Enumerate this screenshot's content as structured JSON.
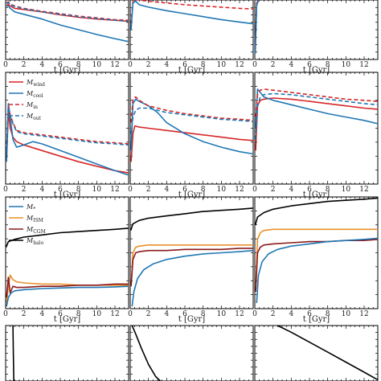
{
  "colors": {
    "red": "#d62728",
    "blue": "#1f77b4",
    "orange": "#e8912c",
    "darkred": "#8b1a1a",
    "black": "#000000"
  },
  "xlabel": "t [Gyr]",
  "xticks": [
    0,
    2,
    4,
    6,
    8,
    10,
    12
  ],
  "legend_row2": [
    {
      "label": "M_wind",
      "color": "red",
      "dash": false
    },
    {
      "label": "M_cool",
      "color": "blue",
      "dash": false
    },
    {
      "label": "M_in",
      "color": "red",
      "dash": true
    },
    {
      "label": "M_out",
      "color": "blue",
      "dash": true
    }
  ],
  "legend_row3": [
    {
      "label": "M_*",
      "color": "blue",
      "dash": false
    },
    {
      "label": "M_ISM",
      "color": "orange",
      "dash": false
    },
    {
      "label": "M_CGM",
      "color": "darkred",
      "dash": false
    },
    {
      "label": "M_halo",
      "color": "black",
      "dash": false
    }
  ],
  "chart_data": [
    {
      "type": "line",
      "panel": "r1c1",
      "xlim": [
        0,
        13.5
      ],
      "ylim": [
        0,
        1
      ],
      "series": [
        {
          "color": "red",
          "dash": false,
          "x": [
            0.1,
            0.3,
            0.5,
            1,
            2,
            4,
            6,
            8,
            10,
            12,
            13.5
          ],
          "y": [
            0.9,
            0.93,
            0.9,
            0.86,
            0.84,
            0.8,
            0.75,
            0.71,
            0.68,
            0.66,
            0.64
          ]
        },
        {
          "color": "blue",
          "dash": false,
          "x": [
            0.1,
            0.3,
            0.5,
            1,
            2,
            4,
            6,
            8,
            10,
            12,
            13.5
          ],
          "y": [
            0.9,
            0.9,
            0.86,
            0.8,
            0.76,
            0.68,
            0.58,
            0.5,
            0.42,
            0.35,
            0.3
          ]
        },
        {
          "color": "red",
          "dash": true,
          "x": [
            0.1,
            0.3,
            0.5,
            1,
            2,
            4,
            6,
            8,
            10,
            12,
            13.5
          ],
          "y": [
            0.95,
            0.97,
            0.93,
            0.9,
            0.86,
            0.81,
            0.77,
            0.73,
            0.7,
            0.67,
            0.66
          ]
        },
        {
          "color": "blue",
          "dash": true,
          "x": [
            0.1,
            0.3,
            0.5,
            1,
            2,
            4,
            6,
            8,
            10,
            12,
            13.5
          ],
          "y": [
            0.94,
            0.96,
            0.92,
            0.89,
            0.85,
            0.8,
            0.76,
            0.72,
            0.69,
            0.66,
            0.64
          ]
        }
      ]
    },
    {
      "type": "line",
      "panel": "r1c2",
      "xlim": [
        0,
        13.5
      ],
      "ylim": [
        0,
        1
      ],
      "series": [
        {
          "color": "red",
          "dash": true,
          "x": [
            0.1,
            0.3,
            0.6,
            1,
            2,
            4,
            6,
            8,
            10,
            12,
            13.5
          ],
          "y": [
            0.6,
            0.98,
            1.02,
            1.0,
            0.98,
            0.95,
            0.92,
            0.9,
            0.88,
            0.86,
            0.85
          ]
        },
        {
          "color": "blue",
          "dash": false,
          "x": [
            0.1,
            0.3,
            0.6,
            1,
            2,
            4,
            6,
            8,
            10,
            12,
            13.5
          ],
          "y": [
            0.5,
            0.95,
            0.98,
            0.92,
            0.88,
            0.82,
            0.77,
            0.72,
            0.67,
            0.63,
            0.6
          ]
        }
      ]
    },
    {
      "type": "line",
      "panel": "r1c3",
      "xlim": [
        0,
        13.5
      ],
      "ylim": [
        0,
        1
      ],
      "series": [
        {
          "color": "red",
          "dash": false,
          "x": [
            0.05,
            0.2,
            0.4
          ],
          "y": [
            0.2,
            0.95,
            1.02
          ]
        },
        {
          "color": "blue",
          "dash": false,
          "x": [
            0.05,
            0.2,
            0.4
          ],
          "y": [
            0.1,
            0.9,
            1.0
          ]
        }
      ]
    },
    {
      "type": "line",
      "panel": "r2c1",
      "xlim": [
        0,
        13.5
      ],
      "ylim": [
        0,
        1
      ],
      "series": [
        {
          "color": "red",
          "dash": false,
          "x": [
            0.1,
            0.3,
            0.5,
            0.8,
            1.2,
            2,
            4,
            6,
            8,
            10,
            12,
            13.5
          ],
          "y": [
            0.2,
            0.65,
            0.5,
            0.42,
            0.38,
            0.35,
            0.3,
            0.25,
            0.2,
            0.16,
            0.12,
            0.1
          ]
        },
        {
          "color": "blue",
          "dash": false,
          "x": [
            0.1,
            0.3,
            0.5,
            0.8,
            1.2,
            2,
            3,
            4,
            6,
            8,
            10,
            12,
            13.5
          ],
          "y": [
            0.2,
            0.72,
            0.6,
            0.4,
            0.33,
            0.35,
            0.38,
            0.36,
            0.3,
            0.24,
            0.18,
            0.12,
            0.08
          ]
        },
        {
          "color": "red",
          "dash": true,
          "x": [
            0.1,
            0.3,
            0.5,
            0.8,
            1.2,
            2,
            4,
            6,
            8,
            10,
            12,
            13.5
          ],
          "y": [
            0.3,
            0.7,
            0.62,
            0.55,
            0.48,
            0.46,
            0.44,
            0.42,
            0.4,
            0.38,
            0.37,
            0.36
          ]
        },
        {
          "color": "blue",
          "dash": true,
          "x": [
            0.1,
            0.3,
            0.5,
            0.8,
            1.2,
            2,
            4,
            6,
            8,
            10,
            12,
            13.5
          ],
          "y": [
            0.3,
            0.69,
            0.61,
            0.54,
            0.47,
            0.45,
            0.43,
            0.41,
            0.39,
            0.37,
            0.36,
            0.35
          ]
        }
      ]
    },
    {
      "type": "line",
      "panel": "r2c2",
      "xlim": [
        0,
        13.5
      ],
      "ylim": [
        0,
        1
      ],
      "series": [
        {
          "color": "red",
          "dash": false,
          "x": [
            0.1,
            0.3,
            0.5,
            1,
            2,
            4,
            6,
            8,
            10,
            12,
            13.5
          ],
          "y": [
            0.2,
            0.45,
            0.52,
            0.51,
            0.5,
            0.48,
            0.46,
            0.44,
            0.42,
            0.4,
            0.39
          ]
        },
        {
          "color": "blue",
          "dash": false,
          "x": [
            0.1,
            0.3,
            0.6,
            1,
            2,
            3,
            4,
            6,
            8,
            10,
            12,
            13.5
          ],
          "y": [
            0.3,
            0.72,
            0.76,
            0.74,
            0.7,
            0.64,
            0.55,
            0.45,
            0.38,
            0.33,
            0.29,
            0.27
          ]
        },
        {
          "color": "red",
          "dash": true,
          "x": [
            0.1,
            0.3,
            0.6,
            1,
            2,
            4,
            6,
            8,
            10,
            12,
            13.5
          ],
          "y": [
            0.55,
            0.76,
            0.78,
            0.75,
            0.7,
            0.66,
            0.63,
            0.61,
            0.59,
            0.58,
            0.57
          ]
        },
        {
          "color": "blue",
          "dash": true,
          "x": [
            0.1,
            0.3,
            0.6,
            1,
            2,
            4,
            6,
            8,
            10,
            12,
            13.5
          ],
          "y": [
            0.45,
            0.6,
            0.66,
            0.68,
            0.68,
            0.64,
            0.62,
            0.6,
            0.58,
            0.57,
            0.56
          ]
        }
      ]
    },
    {
      "type": "line",
      "panel": "r2c3",
      "xlim": [
        0,
        13.5
      ],
      "ylim": [
        0,
        1
      ],
      "series": [
        {
          "color": "red",
          "dash": false,
          "x": [
            0.1,
            0.3,
            0.6,
            1,
            2,
            4,
            6,
            8,
            10,
            12,
            13.5
          ],
          "y": [
            0.3,
            0.7,
            0.75,
            0.76,
            0.77,
            0.76,
            0.74,
            0.72,
            0.7,
            0.68,
            0.67
          ]
        },
        {
          "color": "blue",
          "dash": false,
          "x": [
            0.1,
            0.3,
            0.6,
            1,
            2,
            4,
            6,
            8,
            10,
            12,
            13.5
          ],
          "y": [
            0.5,
            0.85,
            0.82,
            0.78,
            0.75,
            0.71,
            0.67,
            0.63,
            0.6,
            0.57,
            0.54
          ]
        },
        {
          "color": "red",
          "dash": true,
          "x": [
            0.1,
            0.3,
            0.6,
            1,
            2,
            4,
            6,
            8,
            10,
            12,
            13.5
          ],
          "y": [
            0.6,
            0.8,
            0.84,
            0.85,
            0.84,
            0.82,
            0.8,
            0.78,
            0.76,
            0.75,
            0.74
          ]
        },
        {
          "color": "blue",
          "dash": true,
          "x": [
            0.1,
            0.3,
            0.6,
            1,
            2,
            4,
            6,
            8,
            10,
            12,
            13.5
          ],
          "y": [
            0.4,
            0.7,
            0.78,
            0.8,
            0.81,
            0.8,
            0.78,
            0.76,
            0.74,
            0.72,
            0.71
          ]
        }
      ]
    },
    {
      "type": "line",
      "panel": "r3c1",
      "xlim": [
        0,
        13.5
      ],
      "ylim": [
        0,
        1
      ],
      "series": [
        {
          "color": "black",
          "dash": false,
          "x": [
            0.05,
            0.3,
            1,
            2,
            4,
            6,
            8,
            10,
            12,
            13.5
          ],
          "y": [
            0.55,
            0.6,
            0.62,
            0.64,
            0.66,
            0.68,
            0.69,
            0.7,
            0.71,
            0.72
          ]
        },
        {
          "color": "orange",
          "dash": false,
          "x": [
            0.1,
            0.3,
            0.5,
            0.8,
            1.2,
            2,
            4,
            6,
            8,
            10,
            12,
            13.5
          ],
          "y": [
            0.05,
            0.2,
            0.3,
            0.26,
            0.24,
            0.23,
            0.22,
            0.22,
            0.21,
            0.21,
            0.21,
            0.21
          ]
        },
        {
          "color": "darkred",
          "dash": false,
          "x": [
            0.1,
            0.3,
            0.5,
            0.8,
            1.2,
            2,
            4,
            6,
            8,
            10,
            12,
            13.5
          ],
          "y": [
            0.1,
            0.28,
            0.14,
            0.2,
            0.19,
            0.19,
            0.2,
            0.2,
            0.21,
            0.21,
            0.22,
            0.22
          ]
        },
        {
          "color": "blue",
          "dash": false,
          "x": [
            0.1,
            0.3,
            0.6,
            1,
            2,
            4,
            6,
            8,
            10,
            12,
            13.5
          ],
          "y": [
            0.02,
            0.1,
            0.14,
            0.16,
            0.17,
            0.18,
            0.185,
            0.19,
            0.19,
            0.195,
            0.2
          ]
        }
      ]
    },
    {
      "type": "line",
      "panel": "r3c2",
      "xlim": [
        0,
        13.5
      ],
      "ylim": [
        0,
        1
      ],
      "series": [
        {
          "color": "black",
          "dash": false,
          "x": [
            0.05,
            0.3,
            1,
            2,
            4,
            6,
            8,
            10,
            12,
            13.5
          ],
          "y": [
            0.7,
            0.76,
            0.79,
            0.81,
            0.83,
            0.85,
            0.87,
            0.88,
            0.89,
            0.9
          ]
        },
        {
          "color": "orange",
          "dash": false,
          "x": [
            0.1,
            0.3,
            0.6,
            1,
            2,
            4,
            6,
            8,
            10,
            12,
            13.5
          ],
          "y": [
            0.2,
            0.5,
            0.55,
            0.56,
            0.57,
            0.57,
            0.57,
            0.57,
            0.57,
            0.57,
            0.57
          ]
        },
        {
          "color": "darkred",
          "dash": false,
          "x": [
            0.1,
            0.3,
            0.6,
            1,
            2,
            4,
            6,
            8,
            10,
            12,
            13.5
          ],
          "y": [
            0.2,
            0.44,
            0.5,
            0.51,
            0.52,
            0.52,
            0.53,
            0.53,
            0.53,
            0.54,
            0.54
          ]
        },
        {
          "color": "blue",
          "dash": false,
          "x": [
            0.2,
            0.4,
            0.8,
            1.5,
            2.5,
            4,
            6,
            8,
            10,
            12,
            13.5
          ],
          "y": [
            0.02,
            0.15,
            0.27,
            0.35,
            0.4,
            0.44,
            0.47,
            0.49,
            0.5,
            0.51,
            0.52
          ]
        }
      ]
    },
    {
      "type": "line",
      "panel": "r3c3",
      "xlim": [
        0,
        13.5
      ],
      "ylim": [
        0,
        1
      ],
      "series": [
        {
          "color": "black",
          "dash": false,
          "x": [
            0.05,
            0.3,
            1,
            2,
            4,
            6,
            8,
            10,
            12,
            13.5
          ],
          "y": [
            0.75,
            0.82,
            0.86,
            0.89,
            0.92,
            0.94,
            0.96,
            0.97,
            0.98,
            0.99
          ]
        },
        {
          "color": "orange",
          "dash": false,
          "x": [
            0.1,
            0.3,
            0.6,
            1,
            2,
            4,
            6,
            8,
            10,
            12,
            13.5
          ],
          "y": [
            0.2,
            0.62,
            0.68,
            0.7,
            0.71,
            0.71,
            0.71,
            0.71,
            0.71,
            0.71,
            0.71
          ]
        },
        {
          "color": "darkred",
          "dash": false,
          "x": [
            0.1,
            0.3,
            0.6,
            1,
            2,
            4,
            6,
            8,
            10,
            12,
            13.5
          ],
          "y": [
            0.15,
            0.5,
            0.55,
            0.57,
            0.58,
            0.59,
            0.6,
            0.6,
            0.61,
            0.61,
            0.62
          ]
        },
        {
          "color": "blue",
          "dash": false,
          "x": [
            0.2,
            0.4,
            0.8,
            1.5,
            2.5,
            4,
            6,
            8,
            10,
            12,
            13.5
          ],
          "y": [
            0.05,
            0.3,
            0.42,
            0.49,
            0.53,
            0.56,
            0.58,
            0.6,
            0.61,
            0.62,
            0.63
          ]
        }
      ]
    },
    {
      "type": "line",
      "panel": "r4c1",
      "xlim": [
        0,
        13.5
      ],
      "ylim": [
        0,
        1
      ],
      "series": [
        {
          "color": "black",
          "dash": false,
          "x": [
            0.8,
            0.85,
            0.9
          ],
          "y": [
            1.0,
            0.5,
            0.0
          ]
        }
      ]
    },
    {
      "type": "line",
      "panel": "r4c2",
      "xlim": [
        0,
        13.5
      ],
      "ylim": [
        0,
        1
      ],
      "series": [
        {
          "color": "black",
          "dash": false,
          "x": [
            0.2,
            0.6,
            1.2,
            2,
            2.8,
            3.3
          ],
          "y": [
            1.0,
            0.85,
            0.6,
            0.3,
            0.08,
            0.0
          ]
        }
      ]
    },
    {
      "type": "line",
      "panel": "r4c3",
      "xlim": [
        0,
        13.5
      ],
      "ylim": [
        0,
        1
      ],
      "series": [
        {
          "color": "black",
          "dash": false,
          "x": [
            2.5,
            4,
            6,
            8,
            10,
            12,
            13.5
          ],
          "y": [
            1.0,
            0.88,
            0.7,
            0.52,
            0.34,
            0.16,
            0.02
          ]
        }
      ]
    }
  ]
}
